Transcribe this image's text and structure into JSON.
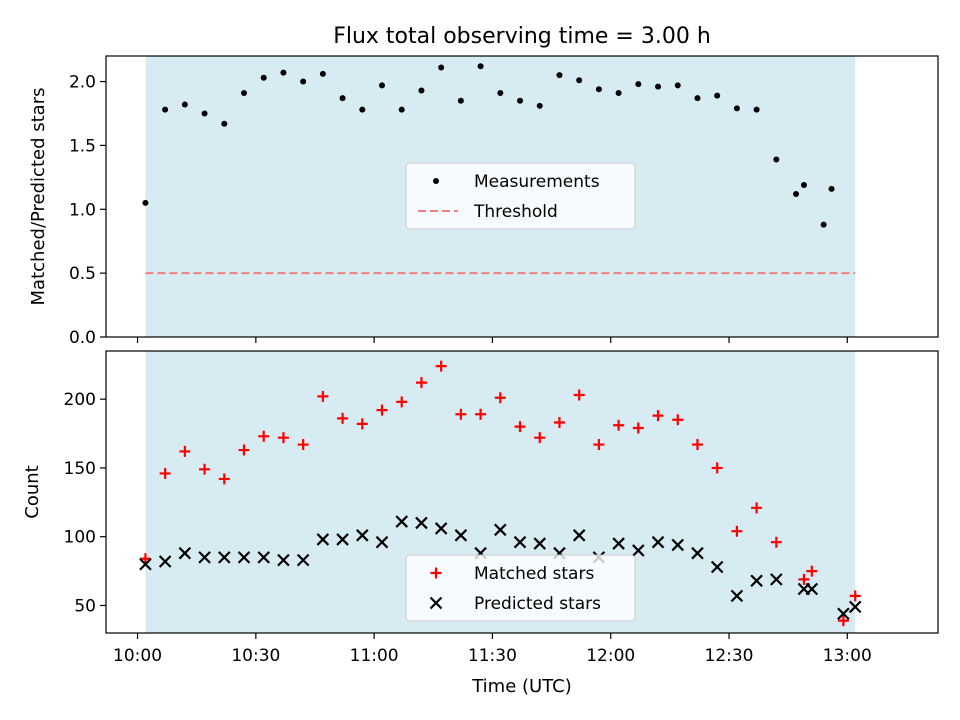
{
  "figure": {
    "title": "Flux total observing time = 3.00 h",
    "xlabel": "Time (UTC)",
    "x_ticks": [
      "10:00",
      "10:30",
      "11:00",
      "11:30",
      "12:00",
      "12:30",
      "13:00"
    ],
    "x_tick_minutes": [
      600,
      630,
      660,
      690,
      720,
      750,
      780
    ],
    "span_minutes": [
      602,
      782
    ],
    "span_color": "#add8e6",
    "xlim": [
      592,
      803
    ]
  },
  "chart_data": [
    {
      "type": "scatter",
      "ylabel": "Matched/Predicted stars",
      "ylim": [
        0,
        2.2
      ],
      "y_ticks": [
        "0.0",
        "0.5",
        "1.0",
        "1.5",
        "2.0"
      ],
      "y_tick_values": [
        0,
        0.5,
        1.0,
        1.5,
        2.0
      ],
      "legend_position": "center",
      "series": [
        {
          "name": "Measurements",
          "marker": "dot",
          "color": "#000000",
          "x": [
            "10:02",
            "10:07",
            "10:12",
            "10:17",
            "10:22",
            "10:27",
            "10:32",
            "10:37",
            "10:42",
            "10:47",
            "10:52",
            "10:57",
            "11:02",
            "11:07",
            "11:12",
            "11:17",
            "11:22",
            "11:27",
            "11:32",
            "11:37",
            "11:42",
            "11:47",
            "11:52",
            "11:57",
            "12:02",
            "12:07",
            "12:12",
            "12:17",
            "12:22",
            "12:27",
            "12:32",
            "12:37",
            "12:42",
            "12:47",
            "12:49",
            "12:54",
            "12:56",
            "13:02"
          ],
          "y": [
            1.05,
            1.78,
            1.82,
            1.75,
            1.67,
            1.91,
            2.03,
            2.07,
            2.0,
            2.06,
            1.87,
            1.78,
            1.97,
            1.78,
            1.93,
            2.11,
            1.85,
            2.12,
            1.91,
            1.85,
            1.81,
            2.05,
            2.01,
            1.94,
            1.91,
            1.98,
            1.96,
            1.97,
            1.87,
            1.89,
            1.79,
            1.78,
            1.39,
            1.12,
            1.19,
            0.88,
            1.16,
            null
          ]
        },
        {
          "name": "Threshold",
          "style": "dashed-line",
          "color": "#f08080",
          "x": [
            "10:02",
            "13:02"
          ],
          "y": [
            0.5,
            0.5
          ]
        }
      ]
    },
    {
      "type": "scatter",
      "ylabel": "Count",
      "ylim": [
        30,
        235
      ],
      "y_ticks": [
        "50",
        "100",
        "150",
        "200"
      ],
      "y_tick_values": [
        50,
        100,
        150,
        200
      ],
      "legend_position": "bottom-center",
      "series": [
        {
          "name": "Matched stars",
          "marker": "plus",
          "color": "#ff0000",
          "x": [
            "10:02",
            "10:07",
            "10:12",
            "10:17",
            "10:22",
            "10:27",
            "10:32",
            "10:37",
            "10:42",
            "10:47",
            "10:52",
            "10:57",
            "11:02",
            "11:07",
            "11:12",
            "11:17",
            "11:22",
            "11:27",
            "11:32",
            "11:37",
            "11:42",
            "11:47",
            "11:52",
            "11:57",
            "12:02",
            "12:07",
            "12:12",
            "12:17",
            "12:22",
            "12:27",
            "12:32",
            "12:37",
            "12:42",
            "12:49",
            "12:51",
            "12:59",
            "13:02"
          ],
          "y": [
            84,
            146,
            162,
            149,
            142,
            163,
            173,
            172,
            167,
            202,
            186,
            182,
            192,
            198,
            212,
            224,
            189,
            189,
            201,
            180,
            172,
            183,
            203,
            167,
            181,
            179,
            188,
            185,
            167,
            150,
            104,
            121,
            96,
            69,
            75,
            39,
            57
          ]
        },
        {
          "name": "Predicted stars",
          "marker": "x",
          "color": "#000000",
          "x": [
            "10:02",
            "10:07",
            "10:12",
            "10:17",
            "10:22",
            "10:27",
            "10:32",
            "10:37",
            "10:42",
            "10:47",
            "10:52",
            "10:57",
            "11:02",
            "11:07",
            "11:12",
            "11:17",
            "11:22",
            "11:27",
            "11:32",
            "11:37",
            "11:42",
            "11:47",
            "11:52",
            "11:57",
            "12:02",
            "12:07",
            "12:12",
            "12:17",
            "12:22",
            "12:27",
            "12:32",
            "12:37",
            "12:42",
            "12:49",
            "12:51",
            "12:59",
            "13:02"
          ],
          "y": [
            80,
            82,
            88,
            85,
            85,
            85,
            85,
            83,
            83,
            98,
            98,
            101,
            96,
            111,
            110,
            106,
            101,
            88,
            105,
            96,
            95,
            88,
            101,
            85,
            95,
            90,
            96,
            94,
            88,
            78,
            57,
            68,
            69,
            62,
            62,
            44,
            49
          ]
        }
      ]
    }
  ]
}
